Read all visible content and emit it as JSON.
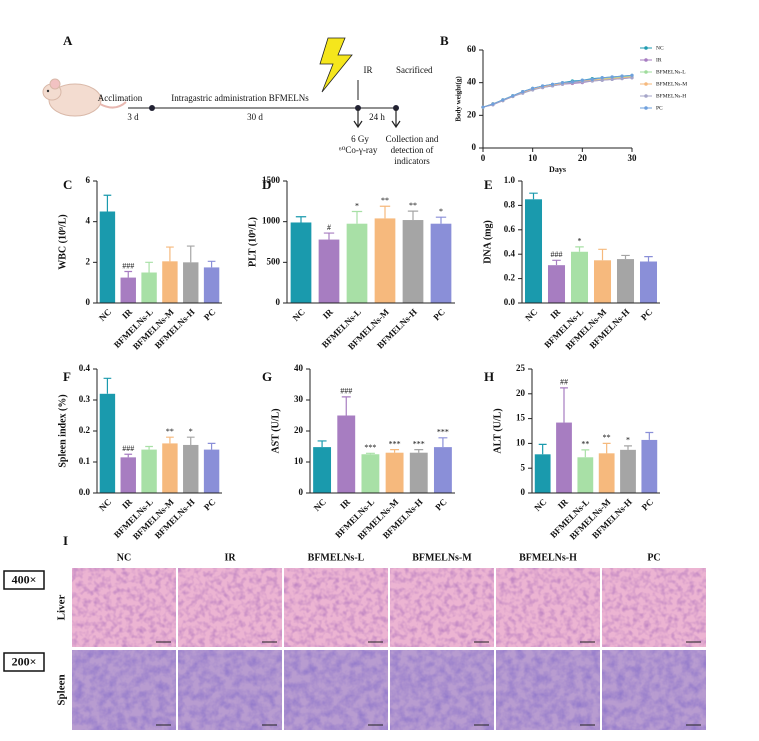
{
  "panel_a": {
    "label": "A",
    "acclimation": "Acclimation",
    "acclimation_days": "3 d",
    "administration": "Intragastric administration BFMELNs",
    "administration_days": "30 d",
    "ir": "IR",
    "sacrificed": "Sacrificed",
    "interval": "24 h",
    "dose": "6 Gy",
    "source": "⁶⁰Co-γ-ray",
    "collection": [
      "Collection and",
      "detection of",
      "indicators"
    ]
  },
  "chart_data": [
    {
      "type": "line",
      "label": "B",
      "xlabel": "Days",
      "ylabel": "Body weight(g)",
      "x": [
        0,
        2,
        4,
        6,
        8,
        10,
        12,
        14,
        16,
        18,
        20,
        22,
        24,
        26,
        28,
        30
      ],
      "xlim": [
        0,
        30
      ],
      "xticks": [
        0,
        10,
        20,
        30
      ],
      "ylim": [
        0,
        60
      ],
      "yticks": [
        0,
        20,
        40,
        60
      ],
      "series": [
        {
          "name": "NC",
          "color": "#1f9bb0",
          "values": [
            25,
            27,
            29.5,
            32,
            34.5,
            36.5,
            38,
            39,
            40,
            41,
            41.5,
            42.5,
            43,
            43.5,
            44,
            44.5
          ]
        },
        {
          "name": "IR",
          "color": "#a77dc1",
          "values": [
            25,
            26.5,
            29,
            31.5,
            34,
            36,
            37,
            38,
            39,
            39.5,
            40,
            41,
            41.5,
            42,
            42.5,
            43
          ]
        },
        {
          "name": "BFMELNs-L",
          "color": "#9fdc9c",
          "values": [
            25,
            27,
            29.5,
            32,
            34,
            36,
            37.5,
            38.5,
            39.5,
            40.5,
            41,
            42,
            42.5,
            43,
            43.5,
            44
          ]
        },
        {
          "name": "BFMELNs-M",
          "color": "#f6b97d",
          "values": [
            25,
            27,
            29,
            31.5,
            34,
            36,
            37.5,
            38.5,
            39.5,
            40,
            41,
            41.5,
            42,
            42.5,
            43,
            43.5
          ]
        },
        {
          "name": "BFMELNs-H",
          "color": "#a5a5c8",
          "values": [
            25,
            26.5,
            29,
            31.5,
            33.5,
            35.5,
            37,
            38,
            39,
            40,
            40.5,
            41,
            41.5,
            42,
            42.5,
            43
          ]
        },
        {
          "name": "PC",
          "color": "#6fa0dd",
          "values": [
            25,
            27,
            29.5,
            32,
            34.5,
            36.5,
            38,
            39,
            40,
            40.5,
            41.5,
            42,
            43,
            43.5,
            44,
            44.5
          ]
        }
      ]
    },
    {
      "type": "bar",
      "label": "C",
      "ylabel": "WBC (10⁹/L)",
      "categories": [
        "NC",
        "IR",
        "BFMELNs-L",
        "BFMELNs-M",
        "BFMELNs-H",
        "PC"
      ],
      "colors": [
        "#1a9aad",
        "#a77dc1",
        "#a8e0a6",
        "#f6b97d",
        "#a5a5a5",
        "#8a8fd8"
      ],
      "values": [
        4.5,
        1.25,
        1.5,
        2.05,
        2.0,
        1.75
      ],
      "errors": [
        0.8,
        0.3,
        0.5,
        0.7,
        0.8,
        0.3
      ],
      "annotations": [
        null,
        "###",
        null,
        null,
        null,
        null
      ],
      "ylim": [
        0,
        6
      ],
      "yticks": [
        0,
        2,
        4,
        6
      ]
    },
    {
      "type": "bar",
      "label": "D",
      "ylabel": "PLT (10⁹/L)",
      "categories": [
        "NC",
        "IR",
        "BFMELNs-L",
        "BFMELNs-M",
        "BFMELNs-H",
        "PC"
      ],
      "colors": [
        "#1a9aad",
        "#a77dc1",
        "#a8e0a6",
        "#f6b97d",
        "#a5a5a5",
        "#8a8fd8"
      ],
      "values": [
        990,
        780,
        975,
        1040,
        1020,
        975
      ],
      "errors": [
        70,
        80,
        150,
        150,
        110,
        80
      ],
      "annotations": [
        null,
        "#",
        "*",
        "**",
        "**",
        "*"
      ],
      "ylim": [
        0,
        1500
      ],
      "yticks": [
        0,
        500,
        1000,
        1500
      ]
    },
    {
      "type": "bar",
      "label": "E",
      "ylabel": "DNA (mg)",
      "categories": [
        "NC",
        "IR",
        "BFMELNs-L",
        "BFMELNs-M",
        "BFMELNs-H",
        "PC"
      ],
      "colors": [
        "#1a9aad",
        "#a77dc1",
        "#a8e0a6",
        "#f6b97d",
        "#a5a5a5",
        "#8a8fd8"
      ],
      "values": [
        0.85,
        0.31,
        0.42,
        0.35,
        0.36,
        0.34
      ],
      "errors": [
        0.05,
        0.04,
        0.04,
        0.09,
        0.03,
        0.04
      ],
      "annotations": [
        null,
        "###",
        "*",
        null,
        null,
        null
      ],
      "ylim": [
        0,
        1.0
      ],
      "yticks": [
        {
          "value": 0,
          "label": "0.0"
        },
        0.2,
        0.4,
        0.6,
        0.8,
        {
          "value": 1,
          "label": "1.0"
        }
      ]
    },
    {
      "type": "bar",
      "label": "F",
      "ylabel": "Spleen index (%)",
      "categories": [
        "NC",
        "IR",
        "BFMELNs-L",
        "BFMELNs-M",
        "BFMELNs-H",
        "PC"
      ],
      "colors": [
        "#1a9aad",
        "#a77dc1",
        "#a8e0a6",
        "#f6b97d",
        "#a5a5a5",
        "#8a8fd8"
      ],
      "values": [
        0.32,
        0.115,
        0.14,
        0.16,
        0.155,
        0.14
      ],
      "errors": [
        0.05,
        0.01,
        0.01,
        0.02,
        0.025,
        0.02
      ],
      "annotations": [
        null,
        "###",
        null,
        "**",
        "*",
        null
      ],
      "ylim": [
        0,
        0.4
      ],
      "yticks": [
        {
          "value": 0,
          "label": "0.0"
        },
        0.1,
        0.2,
        0.3,
        0.4
      ]
    },
    {
      "type": "bar",
      "label": "G",
      "ylabel": "AST (U/L)",
      "categories": [
        "NC",
        "IR",
        "BFMELNs-L",
        "BFMELNs-M",
        "BFMELNs-H",
        "PC"
      ],
      "colors": [
        "#1a9aad",
        "#a77dc1",
        "#a8e0a6",
        "#f6b97d",
        "#a5a5a5",
        "#8a8fd8"
      ],
      "values": [
        14.8,
        25,
        12.5,
        13,
        13,
        14.8
      ],
      "errors": [
        2,
        6,
        0.3,
        1,
        1,
        3
      ],
      "annotations": [
        null,
        "###",
        "***",
        "***",
        "***",
        "***"
      ],
      "ylim": [
        0,
        40
      ],
      "yticks": [
        0,
        10,
        20,
        30,
        40
      ]
    },
    {
      "type": "bar",
      "label": "H",
      "ylabel": "ALT (U/L)",
      "categories": [
        "NC",
        "IR",
        "BFMELNs-L",
        "BFMELNs-M",
        "BFMELNs-H",
        "PC"
      ],
      "colors": [
        "#1a9aad",
        "#a77dc1",
        "#a8e0a6",
        "#f6b97d",
        "#a5a5a5",
        "#8a8fd8"
      ],
      "values": [
        7.8,
        14.2,
        7.2,
        8,
        8.7,
        10.7
      ],
      "errors": [
        2,
        7,
        1.5,
        2,
        0.8,
        1.5
      ],
      "annotations": [
        null,
        "##",
        "**",
        "**",
        "*",
        null
      ],
      "ylim": [
        0,
        25
      ],
      "yticks": [
        0,
        5,
        10,
        15,
        20,
        25
      ]
    }
  ],
  "panel_i": {
    "label": "I",
    "columns": [
      "NC",
      "IR",
      "BFMELNs-L",
      "BFMELNs-M",
      "BFMELNs-H",
      "PC"
    ],
    "rows": [
      {
        "magnification": "400×",
        "tissue": "Liver"
      },
      {
        "magnification": "200×",
        "tissue": "Spleen"
      }
    ]
  }
}
